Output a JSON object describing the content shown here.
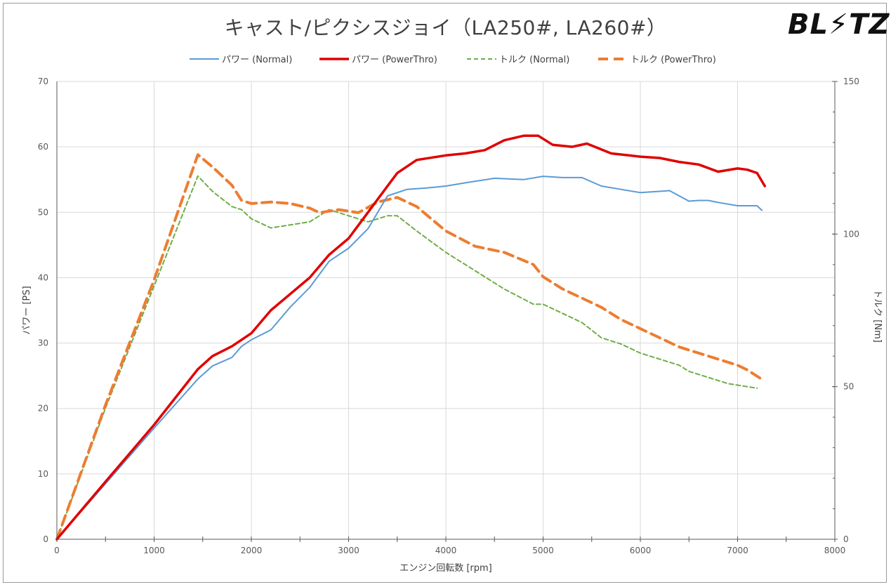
{
  "chart_data": {
    "type": "line",
    "title": "キャスト/ピクシスジョイ（LA250#, LA260#）",
    "brand": "BL⚡TZ",
    "xlabel": "エンジン回転数 [rpm]",
    "ylabel_left": "パワー [PS]",
    "ylabel_right": "トルク [Nm]",
    "xlim": [
      0,
      8000
    ],
    "ylim_left": [
      0,
      70
    ],
    "ylim_right": [
      0,
      150
    ],
    "x_ticks": [
      0,
      1000,
      2000,
      3000,
      4000,
      5000,
      6000,
      7000,
      8000
    ],
    "y_left_ticks": [
      0,
      10,
      20,
      30,
      40,
      50,
      60,
      70
    ],
    "y_right_ticks": [
      0,
      50,
      100,
      150
    ],
    "grid": true,
    "legend_position": "top-center",
    "colors": {
      "power_normal": "#5b9bd5",
      "power_powerthro": "#e00000",
      "torque_normal": "#70ad47",
      "torque_powerthro": "#ed7d31"
    },
    "series": [
      {
        "name": "パワー (Normal)",
        "axis": "left",
        "color": "#5b9bd5",
        "style": "solid-thin",
        "x": [
          0,
          500,
          1000,
          1450,
          1600,
          1800,
          1900,
          2000,
          2200,
          2400,
          2600,
          2800,
          3000,
          3200,
          3400,
          3600,
          3800,
          4000,
          4200,
          4500,
          4800,
          5000,
          5200,
          5400,
          5600,
          5800,
          6000,
          6200,
          6300,
          6400,
          6500,
          6600,
          6700,
          6800,
          7000,
          7200,
          7250
        ],
        "y": [
          0,
          8.5,
          17,
          24.5,
          26.5,
          27.8,
          29.5,
          30.5,
          32,
          35.5,
          38.5,
          42.5,
          44.5,
          47.5,
          52.5,
          53.5,
          53.7,
          54,
          54.5,
          55.2,
          55,
          55.5,
          55.3,
          55.3,
          54,
          53.5,
          53,
          53.2,
          53.3,
          52.5,
          51.7,
          51.8,
          51.8,
          51.5,
          51,
          51,
          50.3
        ]
      },
      {
        "name": "パワー (PowerThro)",
        "axis": "left",
        "color": "#e00000",
        "style": "solid-thick",
        "x": [
          0,
          500,
          1000,
          1450,
          1600,
          1800,
          1900,
          2000,
          2200,
          2400,
          2600,
          2800,
          3000,
          3200,
          3300,
          3400,
          3500,
          3700,
          4000,
          4200,
          4400,
          4600,
          4800,
          4950,
          5100,
          5300,
          5450,
          5700,
          6000,
          6200,
          6400,
          6600,
          6800,
          7000,
          7100,
          7200,
          7280
        ],
        "y": [
          0,
          8.8,
          17.5,
          26,
          28,
          29.5,
          30.5,
          31.5,
          35,
          37.5,
          40,
          43.5,
          46,
          50,
          52,
          54,
          56,
          58,
          58.7,
          59,
          59.5,
          61,
          61.7,
          61.7,
          60.3,
          60,
          60.5,
          59,
          58.5,
          58.3,
          57.7,
          57.3,
          56.2,
          56.7,
          56.5,
          56,
          54
        ]
      },
      {
        "name": "トルク (Normal)",
        "axis": "right",
        "color": "#70ad47",
        "style": "dashed-thin",
        "x": [
          0,
          500,
          1000,
          1450,
          1600,
          1800,
          1900,
          2000,
          2200,
          2400,
          2600,
          2800,
          3000,
          3200,
          3400,
          3500,
          3700,
          4000,
          4300,
          4600,
          4900,
          5000,
          5200,
          5400,
          5600,
          5800,
          6000,
          6200,
          6400,
          6500,
          6700,
          6900,
          7000,
          7100,
          7200
        ],
        "y": [
          0,
          43,
          83,
          119,
          114,
          109,
          108,
          105,
          102,
          103,
          104,
          108,
          106,
          104,
          106,
          106,
          101,
          94,
          88,
          82,
          77,
          77,
          74,
          71,
          66,
          64,
          61,
          59,
          57,
          55,
          53,
          51,
          50.5,
          50,
          49.5
        ]
      },
      {
        "name": "トルク (PowerThro)",
        "axis": "right",
        "color": "#ed7d31",
        "style": "dashed-thick",
        "x": [
          0,
          500,
          1000,
          1450,
          1600,
          1800,
          1900,
          2000,
          2200,
          2400,
          2600,
          2700,
          2900,
          3100,
          3300,
          3500,
          3700,
          4000,
          4300,
          4600,
          4900,
          5000,
          5200,
          5400,
          5600,
          5800,
          6000,
          6200,
          6400,
          6600,
          6800,
          7000,
          7100,
          7270
        ],
        "y": [
          0,
          44,
          85,
          126,
          122,
          116,
          111,
          110,
          110.5,
          110,
          108.5,
          107,
          108,
          107,
          110.5,
          112,
          109,
          101,
          96,
          94,
          90,
          86,
          82,
          79,
          76,
          72,
          69,
          66,
          63,
          61,
          59,
          57,
          55.5,
          52
        ]
      }
    ]
  }
}
